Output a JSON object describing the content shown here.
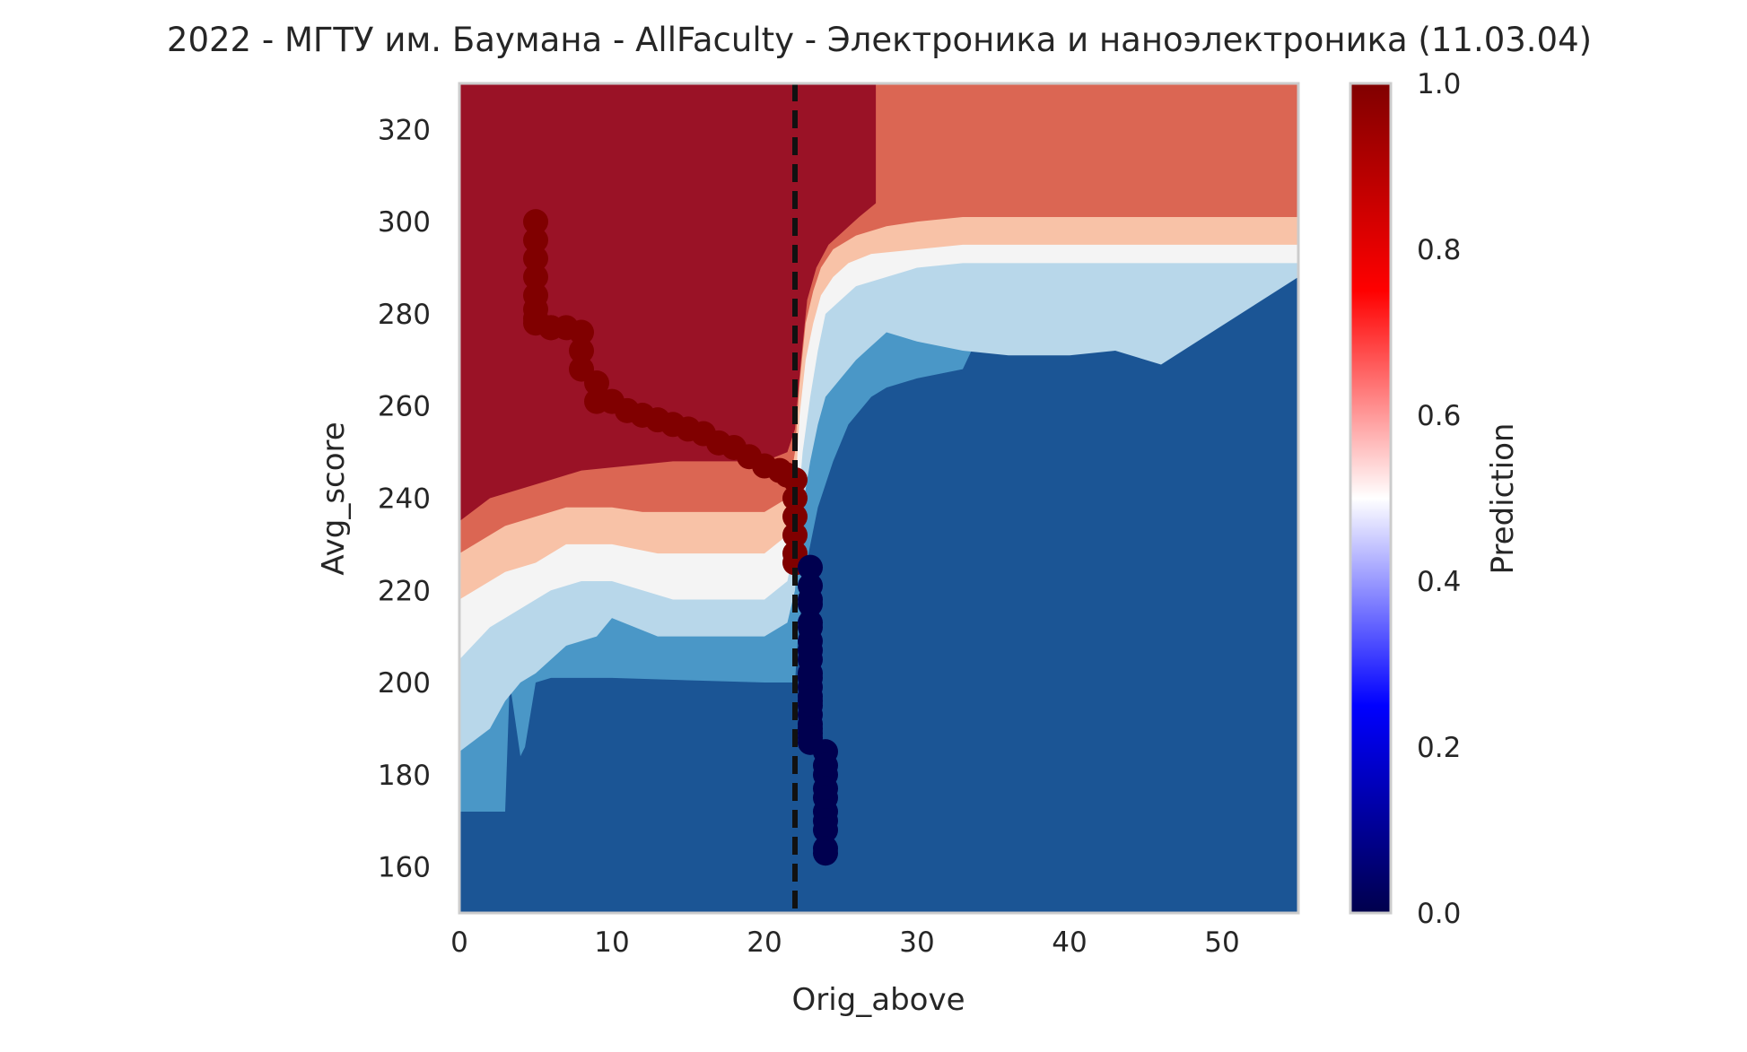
{
  "chart_data": {
    "type": "heatmap",
    "title": "2022 - МГТУ им. Баумана - AllFaculty - Электроника и наноэлектроника (11.03.04)",
    "xlabel": "Orig_above",
    "ylabel": "Avg_score",
    "xlim": [
      0,
      55
    ],
    "ylim": [
      150,
      330
    ],
    "xticks": [
      0,
      10,
      20,
      30,
      40,
      50
    ],
    "yticks": [
      160,
      180,
      200,
      220,
      240,
      260,
      280,
      300,
      320
    ],
    "grid": false,
    "threshold_line": {
      "x": 22,
      "style": "dashed",
      "color": "#111111"
    },
    "contour_levels": [
      {
        "range": "0.0-0.1",
        "color": "#1b5595"
      },
      {
        "range": "0.1-0.2",
        "color": "#4a97c7"
      },
      {
        "range": "0.2-0.3",
        "color": "#b8d7ea"
      },
      {
        "range": "0.3-0.5",
        "color": "#f4f4f4"
      },
      {
        "range": "0.5-0.7",
        "color": "#f8c2a7"
      },
      {
        "range": "0.7-0.9",
        "color": "#db6653"
      },
      {
        "range": "0.9-1.0",
        "color": "#9a1226"
      }
    ],
    "boundaries": {
      "b1": [
        [
          0,
          172
        ],
        [
          3,
          172
        ],
        [
          3.3,
          200
        ],
        [
          4,
          184
        ],
        [
          4.3,
          186
        ],
        [
          5,
          200
        ],
        [
          6,
          201
        ],
        [
          10,
          201
        ],
        [
          20,
          200
        ],
        [
          22,
          200
        ],
        [
          22.2,
          210
        ],
        [
          22.7,
          225
        ],
        [
          23.5,
          238
        ],
        [
          24.5,
          248
        ],
        [
          25.5,
          256
        ],
        [
          27,
          262
        ],
        [
          28,
          264
        ],
        [
          30,
          266
        ],
        [
          33,
          268
        ],
        [
          35,
          282
        ],
        [
          38,
          285
        ],
        [
          43,
          287
        ],
        [
          55,
          288
        ]
      ],
      "b2": [
        [
          0,
          185
        ],
        [
          2,
          190
        ],
        [
          3,
          196
        ],
        [
          4,
          200
        ],
        [
          5,
          202
        ],
        [
          7,
          208
        ],
        [
          9,
          210
        ],
        [
          10,
          214
        ],
        [
          13,
          210
        ],
        [
          20,
          210
        ],
        [
          21.5,
          213
        ],
        [
          22,
          220
        ],
        [
          22.5,
          238
        ],
        [
          23,
          248
        ],
        [
          23.5,
          256
        ],
        [
          24,
          262
        ],
        [
          25,
          266
        ],
        [
          26,
          270
        ],
        [
          27,
          273
        ],
        [
          28,
          276
        ],
        [
          30,
          274
        ],
        [
          33,
          272
        ],
        [
          36,
          271
        ],
        [
          40,
          271
        ],
        [
          43,
          272
        ],
        [
          45,
          270
        ],
        [
          46,
          269
        ],
        [
          55,
          288
        ]
      ],
      "b3": [
        [
          0,
          205
        ],
        [
          2,
          212
        ],
        [
          3,
          214
        ],
        [
          5,
          218
        ],
        [
          6,
          220
        ],
        [
          8,
          222
        ],
        [
          10,
          222
        ],
        [
          14,
          218
        ],
        [
          20,
          218
        ],
        [
          21.5,
          222
        ],
        [
          22,
          230
        ],
        [
          22.5,
          250
        ],
        [
          23,
          262
        ],
        [
          23.5,
          272
        ],
        [
          24,
          280
        ],
        [
          25,
          283
        ],
        [
          26,
          286
        ],
        [
          28,
          288
        ],
        [
          30,
          290
        ],
        [
          33,
          291
        ],
        [
          55,
          291
        ]
      ],
      "b4": [
        [
          0,
          218
        ],
        [
          2,
          222
        ],
        [
          3,
          224
        ],
        [
          5,
          226
        ],
        [
          7,
          230
        ],
        [
          10,
          230
        ],
        [
          13,
          228
        ],
        [
          20,
          228
        ],
        [
          21.5,
          232
        ],
        [
          22,
          240
        ],
        [
          22.3,
          258
        ],
        [
          22.7,
          270
        ],
        [
          23.2,
          278
        ],
        [
          23.7,
          284
        ],
        [
          24.5,
          288
        ],
        [
          25.5,
          291
        ],
        [
          27,
          293
        ],
        [
          30,
          294
        ],
        [
          33,
          295
        ],
        [
          55,
          295
        ]
      ],
      "b5": [
        [
          0,
          228
        ],
        [
          2,
          232
        ],
        [
          3,
          234
        ],
        [
          5,
          236
        ],
        [
          7,
          238
        ],
        [
          10,
          238
        ],
        [
          12,
          237
        ],
        [
          20,
          237
        ],
        [
          21.5,
          240
        ],
        [
          22,
          250
        ],
        [
          22.3,
          265
        ],
        [
          22.7,
          278
        ],
        [
          23.2,
          285
        ],
        [
          23.7,
          290
        ],
        [
          24.5,
          294
        ],
        [
          26,
          297
        ],
        [
          28,
          299
        ],
        [
          30,
          300
        ],
        [
          33,
          301
        ],
        [
          55,
          301
        ]
      ],
      "b6": [
        [
          0,
          235
        ],
        [
          2,
          240
        ],
        [
          4,
          242
        ],
        [
          6,
          244
        ],
        [
          8,
          246
        ],
        [
          11,
          247
        ],
        [
          14,
          248
        ],
        [
          18,
          248
        ],
        [
          20,
          248
        ],
        [
          21.5,
          250
        ],
        [
          22,
          255
        ],
        [
          22.4,
          270
        ],
        [
          22.8,
          283
        ],
        [
          23.4,
          290
        ],
        [
          24.2,
          295
        ],
        [
          25.2,
          298
        ],
        [
          26.2,
          301
        ],
        [
          27.3,
          304
        ],
        [
          27.3,
          330
        ]
      ]
    },
    "points_approved": {
      "label_value": 1,
      "color": "#800000",
      "x": [
        5,
        5,
        5,
        5,
        5,
        5,
        5,
        5,
        6,
        6,
        7,
        8,
        8,
        8,
        9,
        9,
        10,
        11,
        12,
        13,
        14,
        15,
        16,
        17,
        18,
        19,
        20,
        21,
        21.5,
        22,
        22,
        22,
        22,
        22,
        22
      ],
      "y": [
        300,
        296,
        292,
        288,
        284,
        281,
        279,
        278,
        277,
        277,
        277,
        276,
        272,
        268,
        265,
        261,
        261,
        259,
        258,
        257,
        256,
        255,
        254,
        252,
        251,
        249,
        247,
        246,
        245,
        244,
        240,
        236,
        232,
        228,
        226
      ]
    },
    "points_rejected": {
      "label_value": 0,
      "color": "#00004f",
      "x": [
        23,
        23,
        23,
        23,
        23,
        23,
        23,
        23,
        23,
        23,
        23,
        23,
        23,
        23,
        23,
        23,
        23,
        23,
        23,
        23,
        23,
        24,
        24,
        24,
        24,
        24,
        24,
        24,
        24,
        24,
        24
      ],
      "y": [
        225,
        221,
        217,
        213,
        209,
        205,
        201,
        199,
        197,
        195,
        193,
        191,
        189,
        187,
        218,
        212,
        207,
        202,
        196,
        190,
        188,
        185,
        182,
        180,
        177,
        175,
        172,
        170,
        168,
        164,
        163
      ]
    },
    "colorbar": {
      "label": "Prediction",
      "range": [
        0,
        1
      ],
      "ticks": [
        "0.0",
        "0.2",
        "0.4",
        "0.6",
        "0.8",
        "1.0"
      ],
      "colormap": "seismic"
    }
  }
}
